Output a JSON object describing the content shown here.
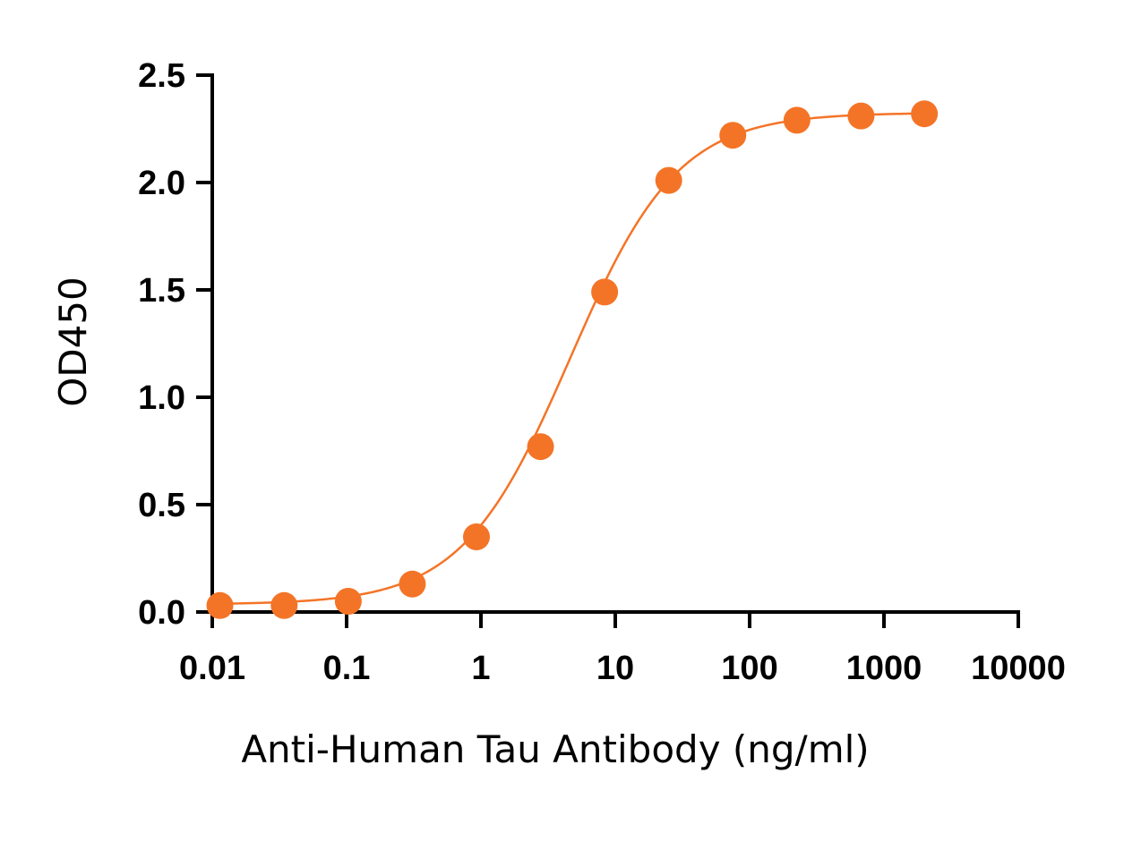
{
  "chart_data": {
    "type": "scatter",
    "title": "",
    "xlabel": "Anti-Human Tau Antibody (ng/ml)",
    "ylabel": "OD450",
    "x_scale": "log",
    "xlim": [
      0.01,
      10000
    ],
    "ylim": [
      0,
      2.5
    ],
    "x_ticks": [
      0.01,
      0.1,
      1,
      10,
      100,
      1000,
      10000
    ],
    "x_tick_labels": [
      "0.01",
      "0.1",
      "1",
      "10",
      "100",
      "1000",
      "10000"
    ],
    "y_ticks": [
      0,
      0.5,
      1,
      1.5,
      2,
      2.5
    ],
    "y_tick_labels": [
      "0.0",
      "0.5",
      "1.0",
      "1.5",
      "2.0",
      "2.5"
    ],
    "grid": false,
    "legend": false,
    "color": "#F47427",
    "series": [
      {
        "x": [
          0.0114,
          0.0343,
          0.1029,
          0.3086,
          0.9259,
          2.778,
          8.333,
          25,
          75,
          225,
          675,
          2000
        ],
        "y": [
          0.03,
          0.03,
          0.05,
          0.13,
          0.35,
          0.77,
          1.49,
          2.01,
          2.22,
          2.29,
          2.31,
          2.32
        ],
        "fit": "4PL sigmoidal curve"
      }
    ]
  }
}
